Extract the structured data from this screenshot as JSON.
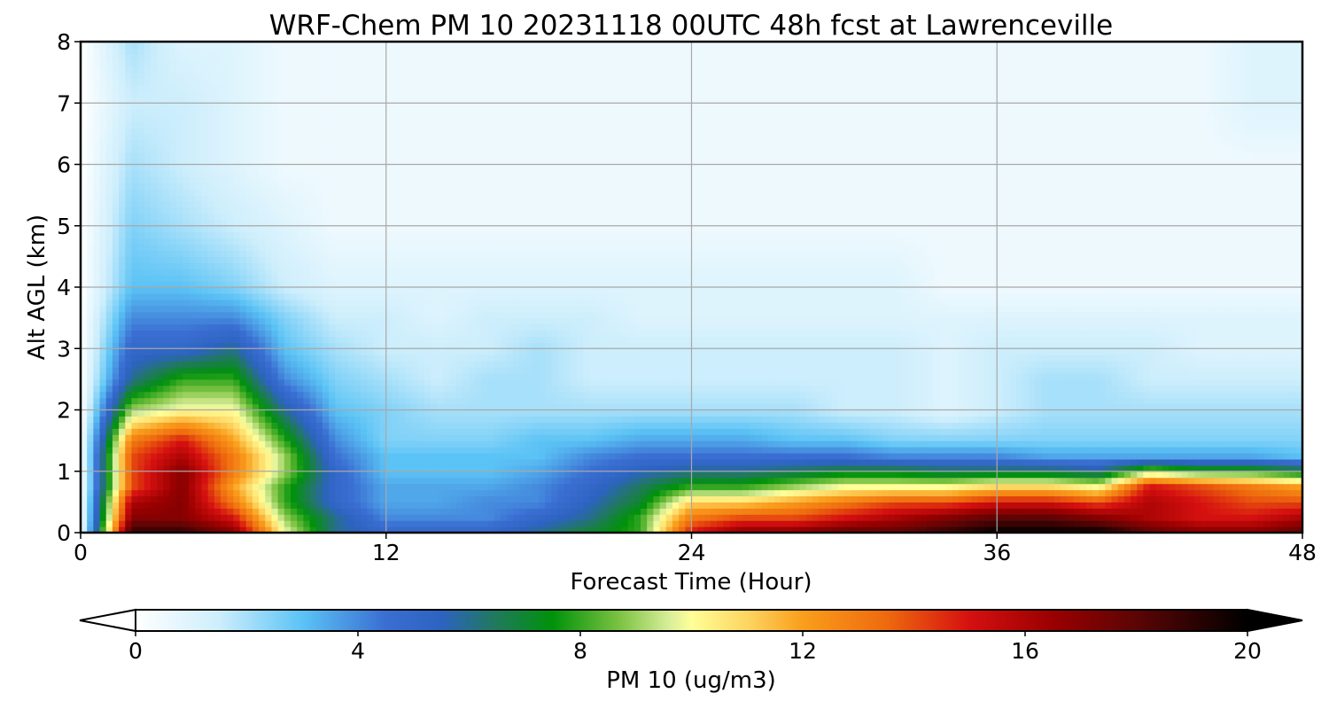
{
  "chart_data": {
    "type": "heatmap",
    "title": "WRF-Chem PM 10  20231118 00UTC 48h fcst at Lawrenceville",
    "xlabel": "Forecast Time (Hour)",
    "ylabel": "Alt AGL (km)",
    "xlim": [
      0,
      48
    ],
    "ylim": [
      0,
      8
    ],
    "x_ticks": [
      0,
      12,
      24,
      36,
      48
    ],
    "y_ticks": [
      0,
      1,
      2,
      3,
      4,
      5,
      6,
      7,
      8
    ],
    "grid": true,
    "x": [
      0,
      2,
      4,
      6,
      8,
      10,
      12,
      14,
      16,
      18,
      20,
      22,
      24,
      26,
      28,
      30,
      32,
      34,
      36,
      38,
      40,
      42,
      44,
      46,
      48
    ],
    "y": [
      0,
      0.25,
      0.5,
      0.75,
      1.0,
      1.25,
      1.5,
      2,
      2.5,
      3,
      3.5,
      4,
      5,
      6,
      7,
      8
    ],
    "z": [
      [
        0,
        19,
        19,
        17,
        10,
        6,
        5,
        5,
        5,
        6,
        7,
        8,
        15,
        17,
        17,
        18,
        18,
        19,
        20,
        20,
        20,
        18,
        17,
        17,
        18
      ],
      [
        0,
        17,
        17,
        15,
        9,
        6,
        4,
        4,
        4,
        5,
        6,
        8,
        13,
        14,
        14,
        15,
        16,
        17,
        18,
        18,
        17,
        16,
        15,
        15,
        16
      ],
      [
        0,
        16,
        17,
        13,
        8,
        5,
        3.5,
        3.5,
        4,
        4,
        5.5,
        7,
        11,
        11,
        12,
        13,
        14,
        14,
        15,
        15,
        14,
        16,
        15,
        14,
        14
      ],
      [
        0,
        14,
        17,
        12,
        8,
        5,
        3.5,
        3.5,
        3.5,
        4,
        5,
        6.5,
        8,
        8,
        9,
        10,
        10,
        10,
        11,
        11,
        10,
        15,
        14,
        13,
        12
      ],
      [
        0,
        14,
        17,
        13,
        9,
        5,
        3,
        3,
        3,
        3.5,
        4.5,
        5.5,
        6,
        6,
        6.5,
        7,
        7,
        6.5,
        6.5,
        6.5,
        6,
        9,
        8,
        8,
        7
      ],
      [
        0,
        14,
        16,
        13,
        9,
        4.5,
        3,
        3,
        3,
        3,
        4,
        4.5,
        4.5,
        4.5,
        4.5,
        4.5,
        4,
        4,
        4,
        3.5,
        3.5,
        3.5,
        3.5,
        3.5,
        3
      ],
      [
        0,
        13,
        15,
        12,
        8,
        4,
        2.5,
        2.5,
        2.5,
        3,
        3,
        3.5,
        3.5,
        3.5,
        3,
        3,
        2.5,
        2.5,
        2.5,
        2.5,
        2.5,
        2.5,
        2.5,
        2.5,
        2.5
      ],
      [
        0,
        9,
        10,
        10,
        6,
        3,
        2.5,
        2,
        2,
        2,
        2,
        2,
        2,
        2,
        2,
        1.5,
        1.5,
        1,
        1.5,
        2,
        2,
        2,
        2,
        2,
        2
      ],
      [
        0,
        6,
        8,
        8,
        4,
        2.5,
        2,
        1.5,
        2,
        2,
        1.5,
        1.5,
        1.5,
        1.5,
        1.5,
        1.5,
        1.5,
        1,
        1.5,
        2,
        2,
        1.5,
        1.5,
        1.5,
        1.5
      ],
      [
        0,
        5,
        5,
        6,
        3,
        2,
        1.5,
        1.5,
        1.5,
        2,
        1.5,
        1.5,
        1.5,
        1.5,
        1.5,
        1.5,
        1.5,
        1,
        1.5,
        1.5,
        1.5,
        1.5,
        1,
        1,
        1
      ],
      [
        0,
        4,
        4,
        4,
        2.5,
        1.5,
        1.5,
        1,
        1.5,
        1.5,
        1.5,
        1,
        1,
        1,
        1,
        1,
        1,
        1,
        1,
        1,
        1,
        1,
        1,
        1,
        1
      ],
      [
        0,
        3,
        3,
        2.5,
        1.5,
        1,
        1,
        1,
        1,
        1,
        1,
        1,
        1,
        1,
        1,
        1,
        1,
        0.5,
        0.5,
        0.5,
        0.5,
        0.5,
        0.5,
        0.5,
        0.5
      ],
      [
        0,
        2.5,
        2,
        1.5,
        1,
        0.5,
        0.5,
        0.5,
        0.5,
        0.5,
        0.5,
        0.5,
        0.5,
        0.5,
        0.5,
        0.5,
        0.5,
        0.5,
        0.5,
        0.5,
        0.5,
        0.5,
        0.5,
        0.5,
        0.5
      ],
      [
        0,
        2,
        1.5,
        1,
        0.5,
        0.5,
        0.5,
        0.5,
        0.5,
        0.5,
        0.5,
        0.5,
        0.5,
        0.5,
        0.5,
        0.5,
        0.5,
        0.5,
        0.5,
        0.5,
        0.5,
        0.5,
        0.5,
        0.5,
        0.5
      ],
      [
        0,
        1.5,
        1.5,
        1,
        0.5,
        0.5,
        0.5,
        0.5,
        0.5,
        0.5,
        0.5,
        0.5,
        0.5,
        0.5,
        0.5,
        0.5,
        0.5,
        0.5,
        0.5,
        0.5,
        0.5,
        0.5,
        0.5,
        1,
        1
      ],
      [
        0,
        2,
        1,
        1,
        0.5,
        0.5,
        0.5,
        0.5,
        0.5,
        0.5,
        0.5,
        0.5,
        0.5,
        0.5,
        0.5,
        0.5,
        0.5,
        0.5,
        0.5,
        0.5,
        0.5,
        0.5,
        0.5,
        1,
        1
      ]
    ],
    "colorbar": {
      "label": "PM 10  (ug/m3)",
      "range": [
        0,
        20
      ],
      "ticks": [
        0,
        4,
        8,
        12,
        16,
        20
      ],
      "extend": "both",
      "orientation": "horizontal",
      "stops": [
        {
          "v": 0,
          "c": "#ffffff"
        },
        {
          "v": 1.5,
          "c": "#cdeefc"
        },
        {
          "v": 3,
          "c": "#5bc3f5"
        },
        {
          "v": 4.5,
          "c": "#3a6ed2"
        },
        {
          "v": 5.5,
          "c": "#2d63c0"
        },
        {
          "v": 6.5,
          "c": "#1f7a5a"
        },
        {
          "v": 7.5,
          "c": "#00920a"
        },
        {
          "v": 8.7,
          "c": "#7cc242"
        },
        {
          "v": 9.6,
          "c": "#d8ee9a"
        },
        {
          "v": 10,
          "c": "#fffe98"
        },
        {
          "v": 11,
          "c": "#fdd561"
        },
        {
          "v": 12,
          "c": "#fa9e1c"
        },
        {
          "v": 13.5,
          "c": "#ee6a0e"
        },
        {
          "v": 15,
          "c": "#d51010"
        },
        {
          "v": 16.5,
          "c": "#9a0000"
        },
        {
          "v": 18,
          "c": "#5c0505"
        },
        {
          "v": 20,
          "c": "#000000"
        }
      ]
    }
  }
}
